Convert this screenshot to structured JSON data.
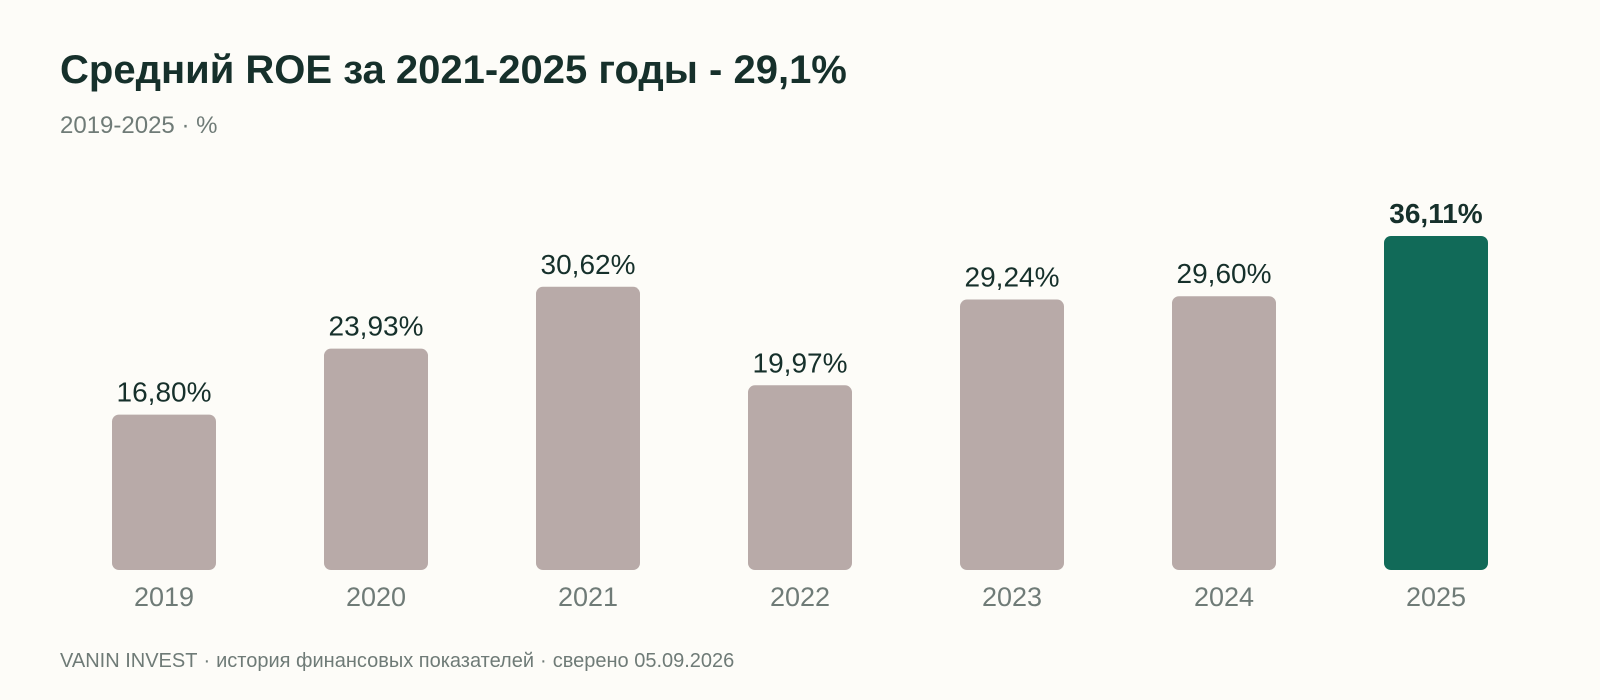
{
  "header": {
    "title": "Средний ROE за 2021-2025 годы - 29,1%",
    "subtitle": "2019-2025 · %"
  },
  "footer": {
    "source": "VANIN INVEST",
    "separator": "·",
    "description": "история финансовых показателей",
    "verified": "сверено 05.09.2026"
  },
  "colors": {
    "background": "#fdfcf8",
    "bar": "#b8aaa8",
    "highlight": "#116a58",
    "value_label": "#16302b",
    "axis_label": "#6f7b77"
  },
  "chart_data": {
    "type": "bar",
    "title": "Средний ROE за 2021-2025 годы - 29,1%",
    "subtitle": "2019-2025 · %",
    "categories": [
      "2019",
      "2020",
      "2021",
      "2022",
      "2023",
      "2024",
      "2025"
    ],
    "values": [
      16.8,
      23.93,
      30.62,
      19.97,
      29.24,
      29.6,
      36.11
    ],
    "value_labels": [
      "16,80%",
      "23,93%",
      "30,62%",
      "19,97%",
      "29,24%",
      "29,60%",
      "36,11%"
    ],
    "highlight_category": "2025",
    "ylim": [
      0,
      36.11
    ],
    "grid": false,
    "legend": "none"
  }
}
